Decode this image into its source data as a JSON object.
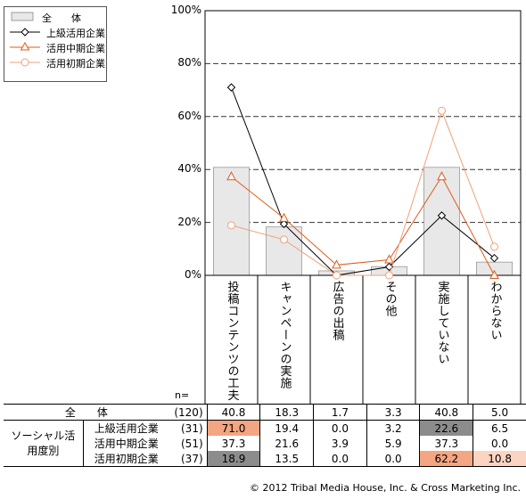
{
  "chart_data": {
    "type": "bar",
    "categories": [
      "投稿コンテンツの工夫",
      "キャンペーンの実施",
      "広告の出稿",
      "その他",
      "実施していない",
      "わからない"
    ],
    "series": [
      {
        "name": "全　　体",
        "kind": "bar",
        "values": [
          40.8,
          18.3,
          1.7,
          3.3,
          40.8,
          5.0
        ],
        "color": "#e8e8e8"
      },
      {
        "name": "上級活用企業",
        "kind": "line",
        "marker": "diamond",
        "values": [
          71.0,
          19.4,
          0.0,
          3.2,
          22.6,
          6.5
        ],
        "color": "#000000"
      },
      {
        "name": "活用中期企業",
        "kind": "line",
        "marker": "triangle",
        "values": [
          37.3,
          21.6,
          3.9,
          5.9,
          37.3,
          0.0
        ],
        "color": "#e05a1a"
      },
      {
        "name": "活用初期企業",
        "kind": "line",
        "marker": "circle",
        "values": [
          18.9,
          13.5,
          0.0,
          0.0,
          62.2,
          10.8
        ],
        "color": "#f0a07a"
      }
    ],
    "ylim": [
      0,
      100
    ],
    "yticks": [
      0,
      20,
      40,
      60,
      80,
      100
    ],
    "ytick_labels": [
      "0%",
      "20%",
      "40%",
      "60%",
      "80%",
      "100%"
    ],
    "grid": true,
    "legend_position": "top-left"
  },
  "table": {
    "n_label": "n=",
    "total_label": "全　　体",
    "group_label": "ソーシャル活用度別",
    "rows": [
      {
        "label": "全　　体",
        "n": "(120)",
        "values": [
          "40.8",
          "18.3",
          "1.7",
          "3.3",
          "40.8",
          "5.0"
        ]
      },
      {
        "label": "上級活用企業",
        "n": "(31)",
        "values": [
          "71.0",
          "19.4",
          "0.0",
          "3.2",
          "22.6",
          "6.5"
        ]
      },
      {
        "label": "活用中期企業",
        "n": "(51)",
        "values": [
          "37.3",
          "21.6",
          "3.9",
          "5.9",
          "37.3",
          "0.0"
        ]
      },
      {
        "label": "活用初期企業",
        "n": "(37)",
        "values": [
          "18.9",
          "13.5",
          "0.0",
          "0.0",
          "62.2",
          "10.8"
        ]
      }
    ],
    "highlight_colors": {
      "high": "#f4a582",
      "low": "#8c8c8c",
      "light": "#fbd5c2"
    }
  },
  "footer": "© 2012 Tribal Media House, Inc. & Cross Marketing Inc."
}
